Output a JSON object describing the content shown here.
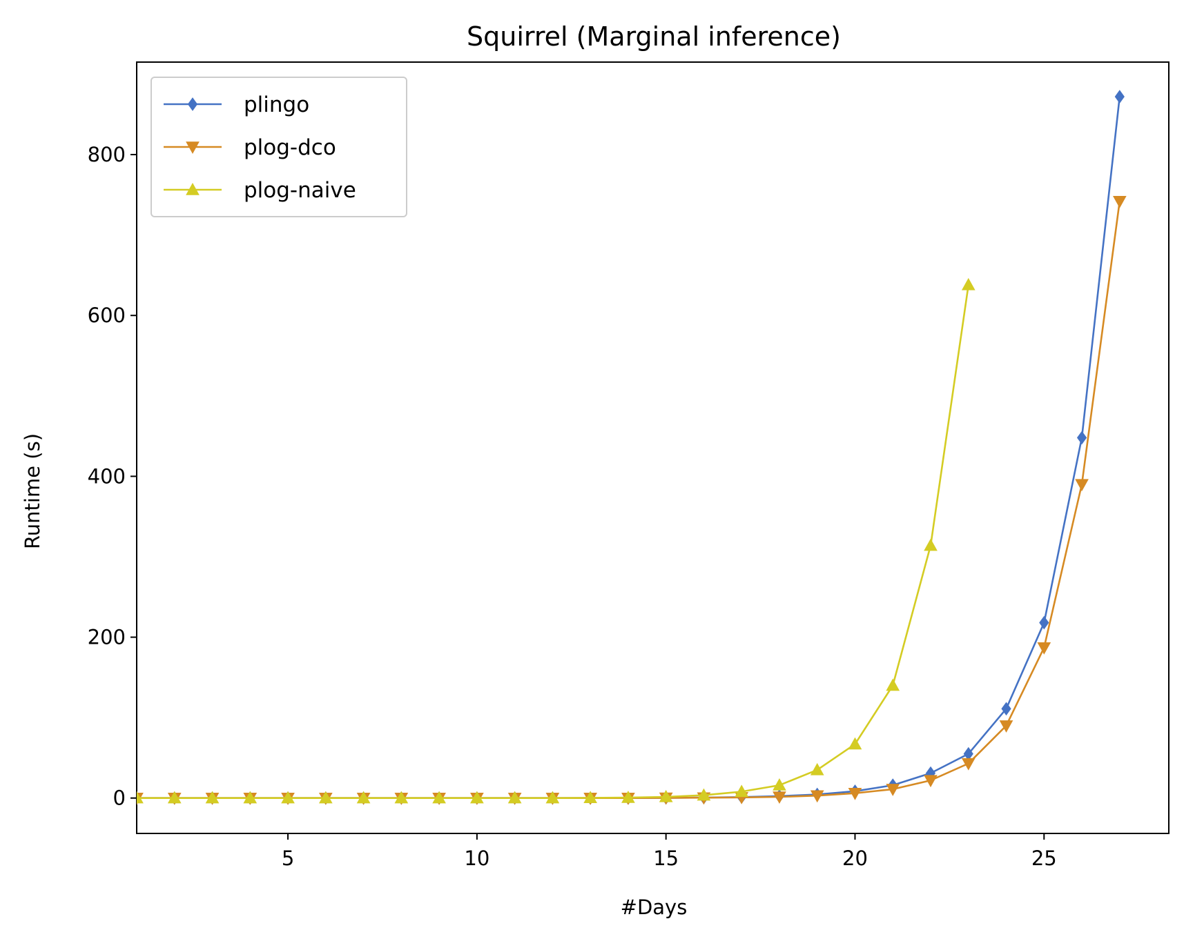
{
  "chart_data": {
    "type": "line",
    "title": "Squirrel (Marginal inference)",
    "xlabel": "#Days",
    "ylabel": "Runtime (s)",
    "xlim": [
      1,
      28.3
    ],
    "ylim": [
      -44,
      915
    ],
    "xticks": [
      5,
      10,
      15,
      20,
      25
    ],
    "yticks": [
      0,
      200,
      400,
      600,
      800
    ],
    "grid": false,
    "legend_position": "top-left",
    "series": [
      {
        "name": "plingo",
        "color": "#4472c4",
        "marker": "diamond",
        "x": [
          1,
          2,
          3,
          4,
          5,
          6,
          7,
          8,
          9,
          10,
          11,
          12,
          13,
          14,
          15,
          16,
          17,
          18,
          19,
          20,
          21,
          22,
          23,
          24,
          25,
          26,
          27
        ],
        "y": [
          0,
          0,
          0,
          0,
          0,
          0,
          0,
          0,
          0,
          0,
          0,
          0,
          0,
          0,
          0.3,
          0.6,
          1.2,
          2.4,
          4.5,
          8.5,
          16,
          31,
          55,
          111,
          218,
          448,
          872
        ]
      },
      {
        "name": "plog-dco",
        "color": "#d68a23",
        "marker": "triangle-down",
        "x": [
          1,
          2,
          3,
          4,
          5,
          6,
          7,
          8,
          9,
          10,
          11,
          12,
          13,
          14,
          15,
          16,
          17,
          18,
          19,
          20,
          21,
          22,
          23,
          24,
          25,
          26,
          27
        ],
        "y": [
          0,
          0,
          0,
          0,
          0,
          0,
          0,
          0,
          0,
          0,
          0,
          0,
          0,
          0,
          0.2,
          0.4,
          0.8,
          1.5,
          3,
          6,
          11,
          22,
          43,
          90,
          187,
          390,
          742
        ]
      },
      {
        "name": "plog-naive",
        "color": "#d4cc23",
        "marker": "triangle-up",
        "x": [
          1,
          2,
          3,
          4,
          5,
          6,
          7,
          8,
          9,
          10,
          11,
          12,
          13,
          14,
          15,
          16,
          17,
          18,
          19,
          20,
          21,
          22,
          23
        ],
        "y": [
          0,
          0,
          0,
          0,
          0,
          0,
          0,
          0,
          0,
          0,
          0,
          0,
          0.3,
          0.6,
          1.5,
          3.5,
          8,
          16,
          35,
          67,
          140,
          314,
          638
        ]
      }
    ]
  }
}
